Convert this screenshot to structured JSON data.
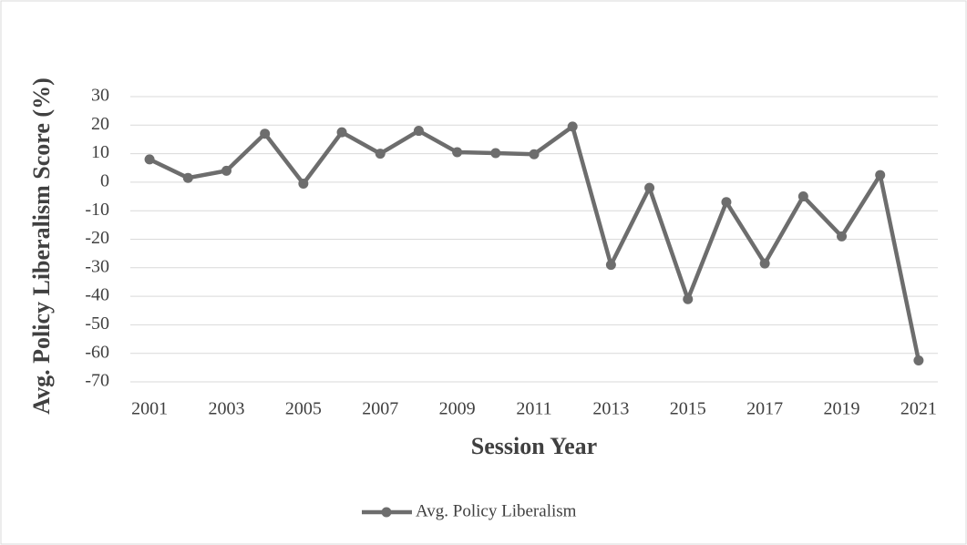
{
  "chart_data": {
    "type": "line",
    "x_label": "Session Year",
    "y_label": "Avg. Policy Liberalism Score (%)",
    "categories": [
      "2001",
      null,
      "2003",
      null,
      "2005",
      null,
      "2007",
      null,
      "2009",
      null,
      "2011",
      null,
      "2013",
      null,
      "2015",
      null,
      "2017",
      null,
      "2019",
      null,
      "2021"
    ],
    "series": [
      {
        "name": "Avg. Policy Liberalism",
        "color": "#6d6d6d",
        "values": [
          8,
          1.5,
          4,
          17,
          -0.5,
          17.5,
          10,
          18,
          10.5,
          10.2,
          9.8,
          19.5,
          -29,
          -2,
          -41,
          -7,
          -28.5,
          -5,
          -19,
          2.5,
          -62.5
        ]
      }
    ],
    "ylim": [
      -70,
      30
    ],
    "yticks": [
      30,
      20,
      10,
      0,
      -10,
      -20,
      -30,
      -40,
      -50,
      -60,
      -70
    ],
    "grid": true,
    "legend": "bottom"
  }
}
